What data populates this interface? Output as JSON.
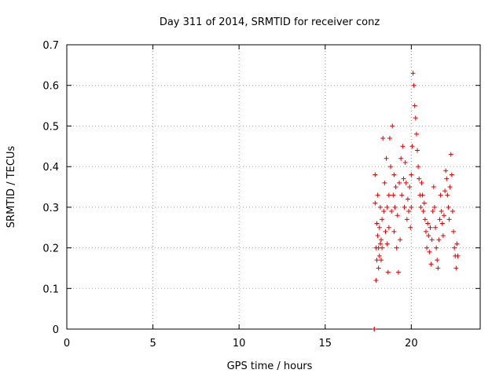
{
  "chart_data": {
    "type": "scatter",
    "title": "Day 311 of 2014, SRMTID for receiver conz",
    "xlabel": "GPS time / hours",
    "ylabel": "SRMTID / TECUs",
    "xlim": [
      0,
      24
    ],
    "ylim": [
      0,
      0.7
    ],
    "xticks": [
      0,
      5,
      10,
      15,
      20
    ],
    "xtick_labels": [
      "0",
      "5",
      "10",
      "15",
      "20"
    ],
    "yticks": [
      0,
      0.1,
      0.2,
      0.3,
      0.4,
      0.5,
      0.6,
      0.7
    ],
    "ytick_labels": [
      "0",
      "0.1",
      "0.2",
      "0.3",
      "0.4",
      "0.5",
      "0.6",
      "0.7"
    ],
    "grid": true,
    "marker": "+",
    "color": "#e00000",
    "series": [
      {
        "name": "SRMTID",
        "x": [
          17.85,
          17.85,
          17.9,
          17.9,
          17.95,
          17.95,
          18.0,
          18.0,
          18.05,
          18.05,
          18.1,
          18.1,
          18.15,
          18.15,
          18.2,
          18.2,
          18.25,
          18.25,
          18.3,
          18.3,
          18.35,
          18.4,
          18.45,
          18.5,
          18.55,
          18.6,
          18.6,
          18.65,
          18.7,
          18.7,
          18.75,
          18.8,
          18.85,
          18.9,
          18.95,
          19.0,
          19.0,
          19.05,
          19.1,
          19.15,
          19.2,
          19.25,
          19.3,
          19.35,
          19.4,
          19.45,
          19.5,
          19.55,
          19.6,
          19.65,
          19.7,
          19.75,
          19.8,
          19.85,
          19.9,
          19.95,
          20.0,
          20.0,
          20.05,
          20.1,
          20.15,
          20.2,
          20.25,
          20.3,
          20.35,
          20.4,
          20.45,
          20.5,
          20.55,
          20.6,
          20.65,
          20.7,
          20.75,
          20.8,
          20.85,
          20.9,
          20.95,
          21.0,
          21.05,
          21.1,
          21.15,
          21.2,
          21.25,
          21.3,
          21.35,
          21.4,
          21.45,
          21.5,
          21.55,
          21.6,
          21.65,
          21.7,
          21.75,
          21.8,
          21.85,
          21.9,
          21.95,
          22.0,
          22.05,
          22.1,
          22.15,
          22.2,
          22.25,
          22.3,
          22.35,
          22.4,
          22.45,
          22.5,
          22.55,
          22.6,
          22.65,
          22.7
        ],
        "y": [
          0.0,
          0.0,
          0.38,
          0.31,
          0.2,
          0.12,
          0.26,
          0.17,
          0.33,
          0.23,
          0.2,
          0.15,
          0.25,
          0.18,
          0.3,
          0.21,
          0.22,
          0.17,
          0.27,
          0.2,
          0.47,
          0.29,
          0.36,
          0.24,
          0.42,
          0.3,
          0.21,
          0.14,
          0.33,
          0.25,
          0.47,
          0.4,
          0.29,
          0.5,
          0.33,
          0.38,
          0.24,
          0.3,
          0.35,
          0.2,
          0.28,
          0.14,
          0.36,
          0.22,
          0.42,
          0.33,
          0.45,
          0.37,
          0.3,
          0.41,
          0.36,
          0.27,
          0.32,
          0.29,
          0.35,
          0.25,
          0.38,
          0.3,
          0.45,
          0.63,
          0.6,
          0.55,
          0.52,
          0.48,
          0.44,
          0.4,
          0.37,
          0.33,
          0.3,
          0.36,
          0.33,
          0.29,
          0.31,
          0.27,
          0.24,
          0.2,
          0.26,
          0.23,
          0.19,
          0.25,
          0.16,
          0.22,
          0.29,
          0.35,
          0.3,
          0.25,
          0.2,
          0.17,
          0.15,
          0.22,
          0.27,
          0.33,
          0.29,
          0.26,
          0.23,
          0.28,
          0.34,
          0.39,
          0.37,
          0.33,
          0.3,
          0.27,
          0.35,
          0.43,
          0.38,
          0.29,
          0.24,
          0.2,
          0.18,
          0.15,
          0.21,
          0.18
        ]
      }
    ]
  }
}
